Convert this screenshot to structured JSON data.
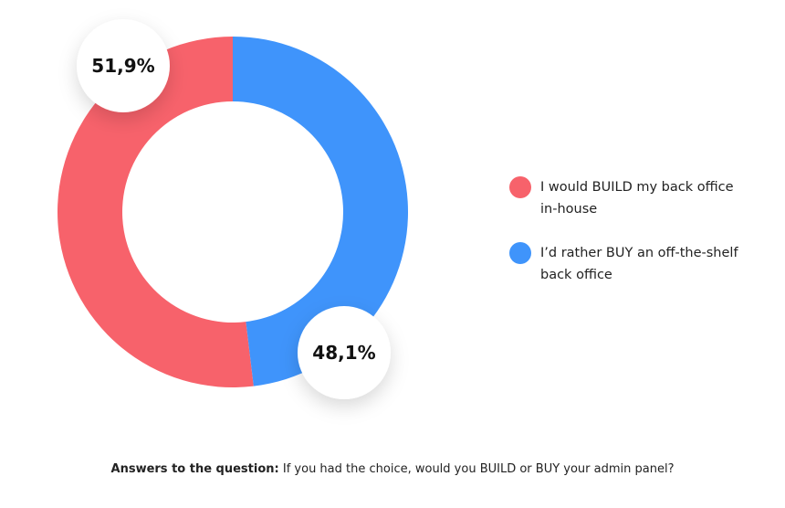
{
  "chart_data": {
    "type": "pie",
    "categories": [
      "I would BUILD my back office in-house",
      "I’d rather BUY an off-the-shelf back office"
    ],
    "values": [
      51.9,
      48.1
    ],
    "value_labels": [
      "51,9%",
      "48,1%"
    ],
    "colors": [
      "#f7626b",
      "#3f94fb"
    ],
    "caption": {
      "label": "Answers to the question:",
      "text": "If you had the choice, would you BUILD or BUY your admin panel?"
    }
  }
}
